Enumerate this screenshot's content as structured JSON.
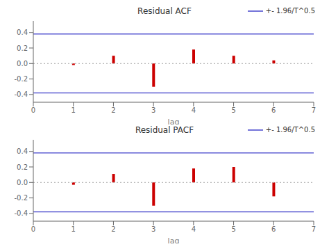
{
  "chart_data": [
    {
      "type": "bar",
      "title": "Residual ACF",
      "x": [
        1,
        2,
        3,
        4,
        5,
        6
      ],
      "values": [
        -0.02,
        0.1,
        -0.3,
        0.18,
        0.1,
        0.04
      ],
      "color": "#cc0000",
      "xlabel": "lag",
      "xlim": [
        0,
        7
      ],
      "xticks": [
        0,
        1,
        2,
        3,
        4,
        5,
        6,
        7
      ],
      "ylim": [
        -0.5,
        0.55
      ],
      "yticks": [
        -0.4,
        -0.2,
        {
          "value": 0,
          "label": "0.0"
        },
        0.2,
        0.4
      ],
      "conf_band": {
        "name": "+- 1.96/T^0.5",
        "color": "#4444cc",
        "values": [
          0.38,
          -0.38
        ]
      },
      "zero_line": {
        "value": 0,
        "color": "#aaaaaa",
        "line_style": "dotted"
      },
      "legend": "upper right"
    },
    {
      "type": "bar",
      "title": "Residual PACF",
      "x": [
        1,
        2,
        3,
        4,
        5,
        6
      ],
      "values": [
        -0.03,
        0.11,
        -0.3,
        0.18,
        0.2,
        -0.18
      ],
      "color": "#cc0000",
      "xlabel": "lag",
      "xlim": [
        0,
        7
      ],
      "xticks": [
        0,
        1,
        2,
        3,
        4,
        5,
        6,
        7
      ],
      "ylim": [
        -0.5,
        0.55
      ],
      "yticks": [
        -0.4,
        -0.2,
        {
          "value": 0,
          "label": "0.0"
        },
        0.2,
        0.4
      ],
      "conf_band": {
        "name": "+- 1.96/T^0.5",
        "color": "#4444cc",
        "values": [
          0.38,
          -0.38
        ]
      },
      "zero_line": {
        "value": 0,
        "color": "#aaaaaa",
        "line_style": "dotted"
      },
      "legend": "upper right"
    }
  ]
}
